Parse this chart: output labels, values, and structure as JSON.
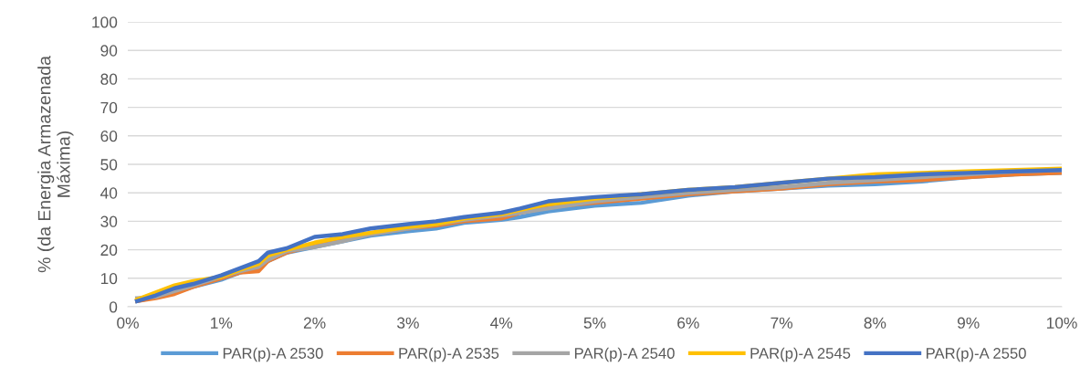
{
  "chart_data": {
    "type": "line",
    "ylabel": "% (da Energia Armazenada\nMáxima)",
    "x": [
      0.1,
      0.3,
      0.5,
      0.7,
      1.0,
      1.2,
      1.4,
      1.5,
      1.7,
      2.0,
      2.3,
      2.6,
      3.0,
      3.3,
      3.6,
      4.0,
      4.2,
      4.5,
      5.0,
      5.5,
      6.0,
      6.5,
      7.0,
      7.5,
      8.0,
      8.5,
      9.0,
      9.5,
      10
    ],
    "series": [
      {
        "name": "PAR(p)-A 2530",
        "color": "#5b9bd5",
        "values": [
          2,
          3.5,
          5,
          7,
          9.5,
          12,
          14,
          16,
          19,
          21,
          23,
          25,
          26.5,
          27.5,
          29.5,
          30.5,
          31.5,
          33.5,
          35.5,
          36.5,
          39,
          40.5,
          41.5,
          42.5,
          43,
          44,
          45.5,
          46.5,
          47
        ]
      },
      {
        "name": "PAR(p)-A 2535",
        "color": "#ed7d31",
        "values": [
          2,
          3,
          4.5,
          7,
          10,
          12,
          12.5,
          16,
          19,
          21.5,
          23.5,
          25.5,
          27.5,
          28.5,
          30,
          31,
          33,
          35,
          36.5,
          38,
          39.5,
          40.5,
          41.5,
          43,
          44,
          44.5,
          45.5,
          46.5,
          47
        ]
      },
      {
        "name": "PAR(p)-A 2540",
        "color": "#a5a5a5",
        "values": [
          3,
          3.5,
          5.5,
          7.5,
          10.5,
          12.5,
          14,
          16.5,
          19.5,
          21,
          23,
          25.5,
          27.5,
          29,
          30.5,
          32,
          33,
          34.5,
          37,
          38.5,
          40,
          41,
          42,
          43.5,
          44.5,
          45.5,
          46.5,
          47.5,
          48
        ]
      },
      {
        "name": "PAR(p)-A 2545",
        "color": "#ffc000",
        "values": [
          2.5,
          5,
          7.5,
          9,
          10.5,
          13,
          15,
          18,
          20,
          22.5,
          24.5,
          26,
          28,
          29,
          31,
          32.5,
          34,
          36,
          38,
          39.5,
          41,
          42,
          43.5,
          45,
          46.5,
          47,
          47.5,
          48,
          48.5
        ]
      },
      {
        "name": "PAR(p)-A 2550",
        "color": "#4472c4",
        "values": [
          2,
          4,
          6.5,
          8,
          11,
          13.5,
          16,
          19,
          20.5,
          24.5,
          25.5,
          27.5,
          29,
          30,
          31.5,
          33,
          34.5,
          37,
          38.5,
          39.5,
          41,
          42,
          43.5,
          45,
          45.5,
          46.5,
          47,
          47.5,
          48
        ]
      }
    ],
    "xlim": [
      0,
      10
    ],
    "xticks": [
      {
        "value": 0,
        "label": "0%"
      },
      {
        "value": 1,
        "label": "1%"
      },
      {
        "value": 2,
        "label": "2%"
      },
      {
        "value": 3,
        "label": "3%"
      },
      {
        "value": 4,
        "label": "4%"
      },
      {
        "value": 5,
        "label": "5%"
      },
      {
        "value": 6,
        "label": "6%"
      },
      {
        "value": 7,
        "label": "7%"
      },
      {
        "value": 8,
        "label": "8%"
      },
      {
        "value": 9,
        "label": "9%"
      },
      {
        "value": 10,
        "label": "10%"
      }
    ],
    "ylim": [
      0,
      100
    ],
    "yticks": [
      0,
      10,
      20,
      30,
      40,
      50,
      60,
      70,
      80,
      90,
      100
    ],
    "grid": "y",
    "legend": "bottom",
    "marker": "none",
    "line_style": "solid"
  }
}
